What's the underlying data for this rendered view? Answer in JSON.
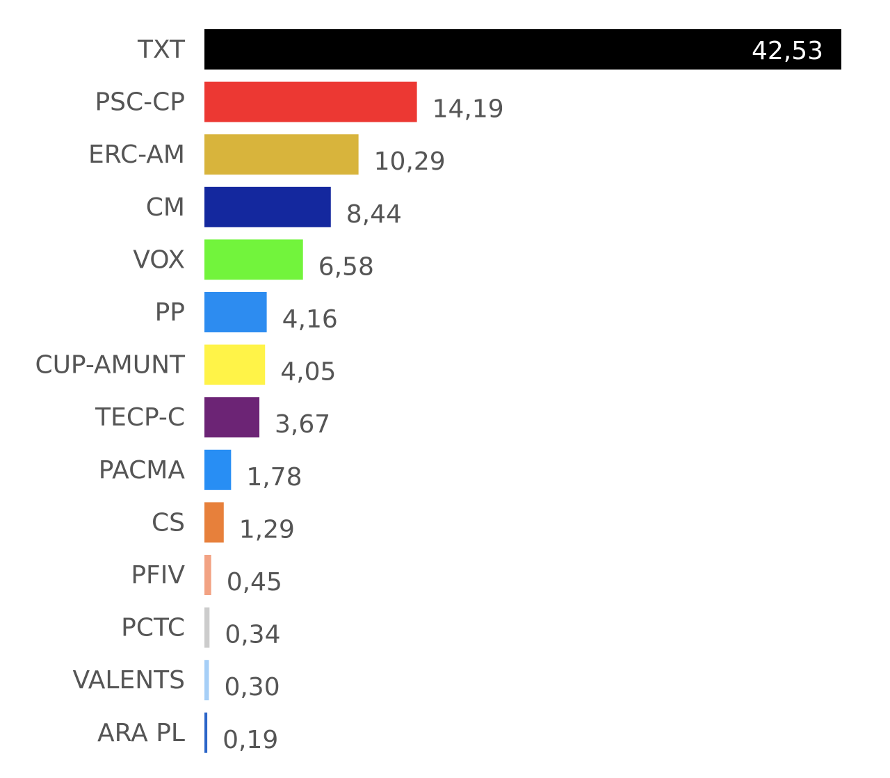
{
  "chart_data": {
    "type": "bar",
    "orientation": "horizontal",
    "title": "",
    "xlabel": "",
    "ylabel": "",
    "xlim": [
      0,
      42.53
    ],
    "grid": false,
    "legend": "none",
    "decimal_separator": ",",
    "categories": [
      "TXT",
      "PSC-CP",
      "ERC-AM",
      "CM",
      "VOX",
      "PP",
      "CUP-AMUNT",
      "TECP-C",
      "PACMA",
      "CS",
      "PFIV",
      "PCTC",
      "VALENTS",
      "ARA PL"
    ],
    "values": [
      42.53,
      14.19,
      10.29,
      8.44,
      6.58,
      4.16,
      4.05,
      3.67,
      1.78,
      1.29,
      0.45,
      0.34,
      0.3,
      0.19
    ],
    "value_labels": [
      "42,53",
      "14,19",
      "10,29",
      "8,44",
      "6,58",
      "4,16",
      "4,05",
      "3,67",
      "1,78",
      "1,29",
      "0,45",
      "0,34",
      "0,30",
      "0,19"
    ],
    "colors": [
      "#000000",
      "#ec3833",
      "#d8b43c",
      "#14289e",
      "#72f43c",
      "#2d8cf0",
      "#fff348",
      "#6c2475",
      "#288ef4",
      "#e7803b",
      "#f2a283",
      "#cccccc",
      "#a6cff7",
      "#2c65c8"
    ]
  }
}
